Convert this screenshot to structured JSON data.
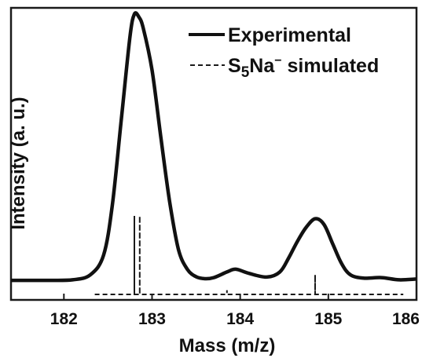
{
  "chart_data": {
    "type": "line",
    "xlabel": "Mass (m/z)",
    "ylabel": "Intensity (a. u.)",
    "xlim": [
      181.4,
      186.0
    ],
    "ylim": [
      0,
      1
    ],
    "x_ticks": [
      "182",
      "183",
      "184",
      "185",
      "186"
    ],
    "y_ticks_labeled": false,
    "grid": false,
    "legend_position": "top-right",
    "series": [
      {
        "name": "Experimental",
        "style": "solid",
        "x": [
          181.4,
          181.8,
          182.1,
          182.3,
          182.45,
          182.55,
          182.65,
          182.75,
          182.8,
          182.85,
          182.9,
          183.0,
          183.1,
          183.2,
          183.3,
          183.4,
          183.5,
          183.6,
          183.7,
          183.85,
          183.95,
          184.1,
          184.3,
          184.45,
          184.55,
          184.65,
          184.75,
          184.85,
          184.95,
          185.05,
          185.15,
          185.25,
          185.4,
          185.6,
          185.8,
          186.0
        ],
        "y": [
          0.05,
          0.05,
          0.052,
          0.07,
          0.14,
          0.32,
          0.62,
          0.92,
          1.0,
          0.99,
          0.95,
          0.8,
          0.56,
          0.33,
          0.16,
          0.09,
          0.063,
          0.056,
          0.06,
          0.08,
          0.09,
          0.075,
          0.062,
          0.08,
          0.13,
          0.19,
          0.24,
          0.27,
          0.25,
          0.18,
          0.11,
          0.07,
          0.058,
          0.06,
          0.052,
          0.055
        ]
      },
      {
        "name": "S₅Na⁻ simulated",
        "style": "dashed",
        "x": [
          182.35,
          182.8,
          182.8,
          182.8,
          182.86,
          182.86,
          182.86,
          183.85,
          183.85,
          183.85,
          184.85,
          184.85,
          184.85,
          185.85
        ],
        "y": [
          0.0,
          0.0,
          0.28,
          0.0,
          0.0,
          0.28,
          0.0,
          0.0,
          0.015,
          0.0,
          0.0,
          0.07,
          0.0,
          0.0
        ]
      }
    ],
    "legend": {
      "experimental_label": "Experimental",
      "simulated_label_prefix": "S",
      "simulated_label_sub": "5",
      "simulated_label_mid": "Na",
      "simulated_label_sup": "−",
      "simulated_label_suffix": " simulated"
    }
  }
}
